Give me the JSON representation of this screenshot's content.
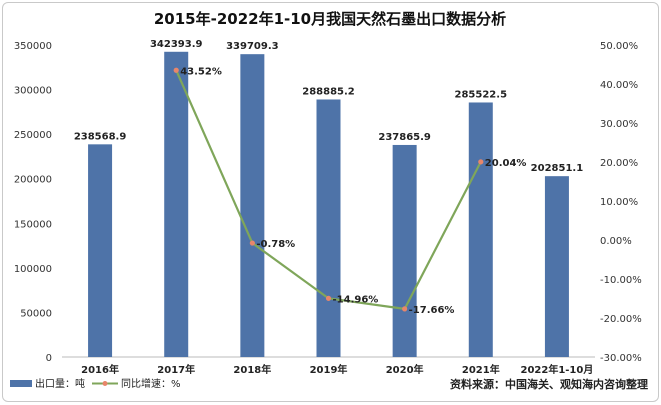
{
  "chart_data": {
    "type": "bar+line",
    "title": "2015年-2022年1-10月我国天然石墨出口数据分析",
    "categories": [
      "2016年",
      "2017年",
      "2018年",
      "2019年",
      "2020年",
      "2021年",
      "2022年1-10月"
    ],
    "series": [
      {
        "name": "出口量：吨",
        "type": "bar",
        "axis": "left",
        "values": [
          238568.9,
          342393.9,
          339709.3,
          288885.2,
          237865.9,
          285522.5,
          202851.1
        ],
        "labels": [
          "238568.9",
          "342393.9",
          "339709.3",
          "288885.2",
          "237865.9",
          "285522.5",
          "202851.1"
        ],
        "color": "#4e73a8"
      },
      {
        "name": "同比增速：%",
        "type": "line",
        "axis": "right",
        "values": [
          null,
          43.52,
          -0.78,
          -14.96,
          -17.66,
          20.04,
          null
        ],
        "labels": [
          null,
          "43.52%",
          "-0.78%",
          "-14.96%",
          "-17.66%",
          "20.04%",
          null
        ],
        "color": "#7fa65a",
        "marker_color": "#e8866a"
      }
    ],
    "y_left": {
      "range": [
        0,
        350000
      ],
      "ticks": [
        "0",
        "50000",
        "100000",
        "150000",
        "200000",
        "250000",
        "300000",
        "350000"
      ]
    },
    "y_right": {
      "range": [
        -30,
        50
      ],
      "ticks": [
        "-30.00%",
        "-20.00%",
        "-10.00%",
        "0.00%",
        "10.00%",
        "20.00%",
        "30.00%",
        "40.00%",
        "50.00%"
      ]
    },
    "grid": false,
    "legend_placement": "bottom-left",
    "source": "资料来源：中国海关、观知海内咨询整理"
  }
}
